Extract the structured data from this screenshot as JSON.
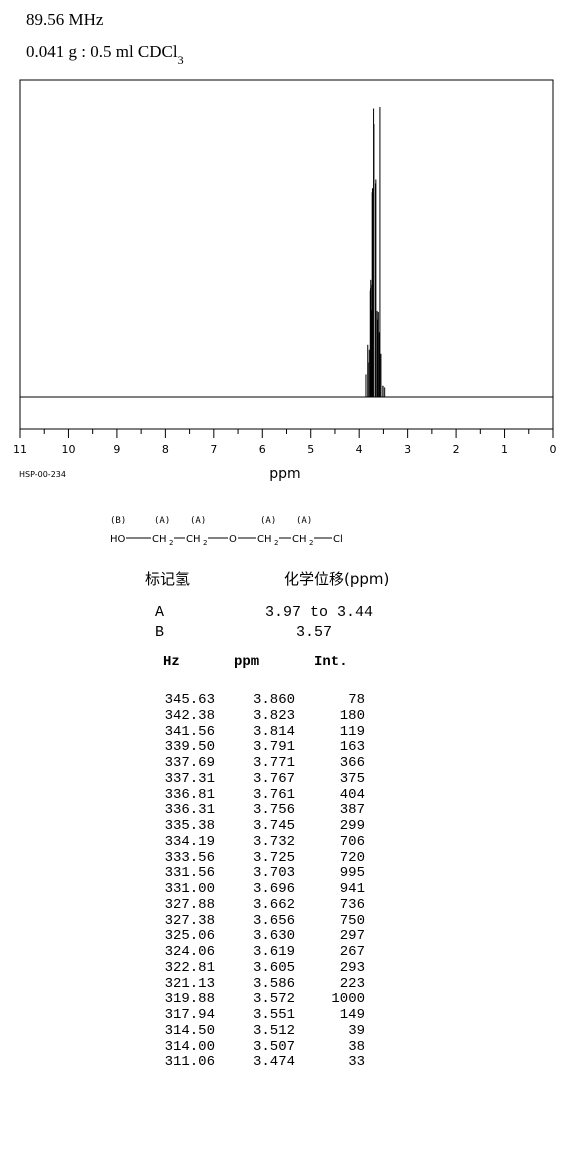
{
  "header": {
    "frequency": "89.56 MHz",
    "sample_prefix": "0.041 g : 0.5 ml CDCl",
    "sample_subscript": "3"
  },
  "spectrum_code": "HSP-00-234",
  "chart_data": {
    "type": "line",
    "title": "",
    "xlabel": "ppm",
    "xlim": [
      11,
      0
    ],
    "x_ticks": [
      "11",
      "10",
      "9",
      "8",
      "7",
      "6",
      "5",
      "4",
      "3",
      "2",
      "1",
      "0"
    ],
    "axis_direction": "decreasing",
    "series": [
      {
        "x": [
          3.86,
          3.823,
          3.814,
          3.791,
          3.771,
          3.767,
          3.761,
          3.756,
          3.745,
          3.732,
          3.725,
          3.703,
          3.696,
          3.662,
          3.656,
          3.63,
          3.619,
          3.605,
          3.586,
          3.572,
          3.551,
          3.512,
          3.507,
          3.474
        ],
        "y": [
          78,
          180,
          119,
          163,
          366,
          375,
          404,
          387,
          299,
          706,
          720,
          995,
          941,
          736,
          750,
          297,
          267,
          293,
          223,
          1000,
          149,
          39,
          38,
          33
        ]
      }
    ]
  },
  "structure": {
    "labels": [
      "(B)",
      "(A)",
      "(A)",
      "(A)",
      "(A)"
    ],
    "formula": [
      "HO",
      "CH",
      "2",
      "CH",
      "2",
      "O",
      "CH",
      "2",
      "CH",
      "2",
      "Cl"
    ]
  },
  "shift_table": {
    "col1_header": "标记氢",
    "col2_header": "化学位移(ppm)",
    "rows": [
      {
        "label": "A",
        "value": "3.97 to 3.44"
      },
      {
        "label": "B",
        "value": "3.57"
      }
    ]
  },
  "peak_table": {
    "headers": [
      "Hz",
      "ppm",
      "Int."
    ],
    "rows": [
      [
        "345.63",
        "3.860",
        "78"
      ],
      [
        "342.38",
        "3.823",
        "180"
      ],
      [
        "341.56",
        "3.814",
        "119"
      ],
      [
        "339.50",
        "3.791",
        "163"
      ],
      [
        "337.69",
        "3.771",
        "366"
      ],
      [
        "337.31",
        "3.767",
        "375"
      ],
      [
        "336.81",
        "3.761",
        "404"
      ],
      [
        "336.31",
        "3.756",
        "387"
      ],
      [
        "335.38",
        "3.745",
        "299"
      ],
      [
        "334.19",
        "3.732",
        "706"
      ],
      [
        "333.56",
        "3.725",
        "720"
      ],
      [
        "331.56",
        "3.703",
        "995"
      ],
      [
        "331.00",
        "3.696",
        "941"
      ],
      [
        "327.88",
        "3.662",
        "736"
      ],
      [
        "327.38",
        "3.656",
        "750"
      ],
      [
        "325.06",
        "3.630",
        "297"
      ],
      [
        "324.06",
        "3.619",
        "267"
      ],
      [
        "322.81",
        "3.605",
        "293"
      ],
      [
        "321.13",
        "3.586",
        "223"
      ],
      [
        "319.88",
        "3.572",
        "1000"
      ],
      [
        "317.94",
        "3.551",
        "149"
      ],
      [
        "314.50",
        "3.512",
        "39"
      ],
      [
        "314.00",
        "3.507",
        "38"
      ],
      [
        "311.06",
        "3.474",
        "33"
      ]
    ]
  }
}
